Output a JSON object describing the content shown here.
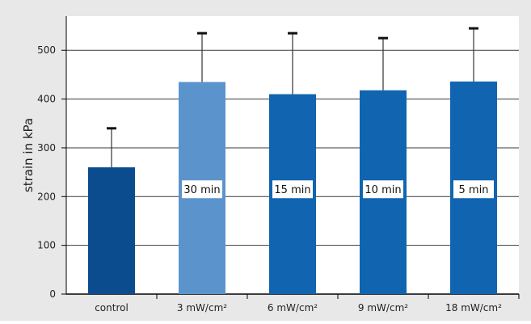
{
  "chart_data": {
    "type": "bar",
    "title": "",
    "xlabel": "",
    "ylabel": "strain in kPa",
    "ylim": [
      0,
      570
    ],
    "yticks": [
      0,
      100,
      200,
      300,
      400,
      500
    ],
    "grid": true,
    "legend": "none",
    "categories": [
      "control",
      "3 mW/cm²",
      "6 mW/cm²",
      "9 mW/cm²",
      "18 mW/cm²"
    ],
    "values": [
      260,
      435,
      410,
      418,
      436
    ],
    "error_upper": [
      340,
      535,
      535,
      525,
      545
    ],
    "bar_labels": [
      "",
      "30 min",
      "15 min",
      "10 min",
      "5 min"
    ],
    "bar_colors": [
      "#0b4c8f",
      "#5b94cc",
      "#1165b0",
      "#1165b0",
      "#1165b0"
    ],
    "colors": {
      "background": "#e8e8e8",
      "plot_background": "#ffffff",
      "grid": "#3a3a3a",
      "error_bar": "#333333",
      "axis": "#000000"
    }
  }
}
